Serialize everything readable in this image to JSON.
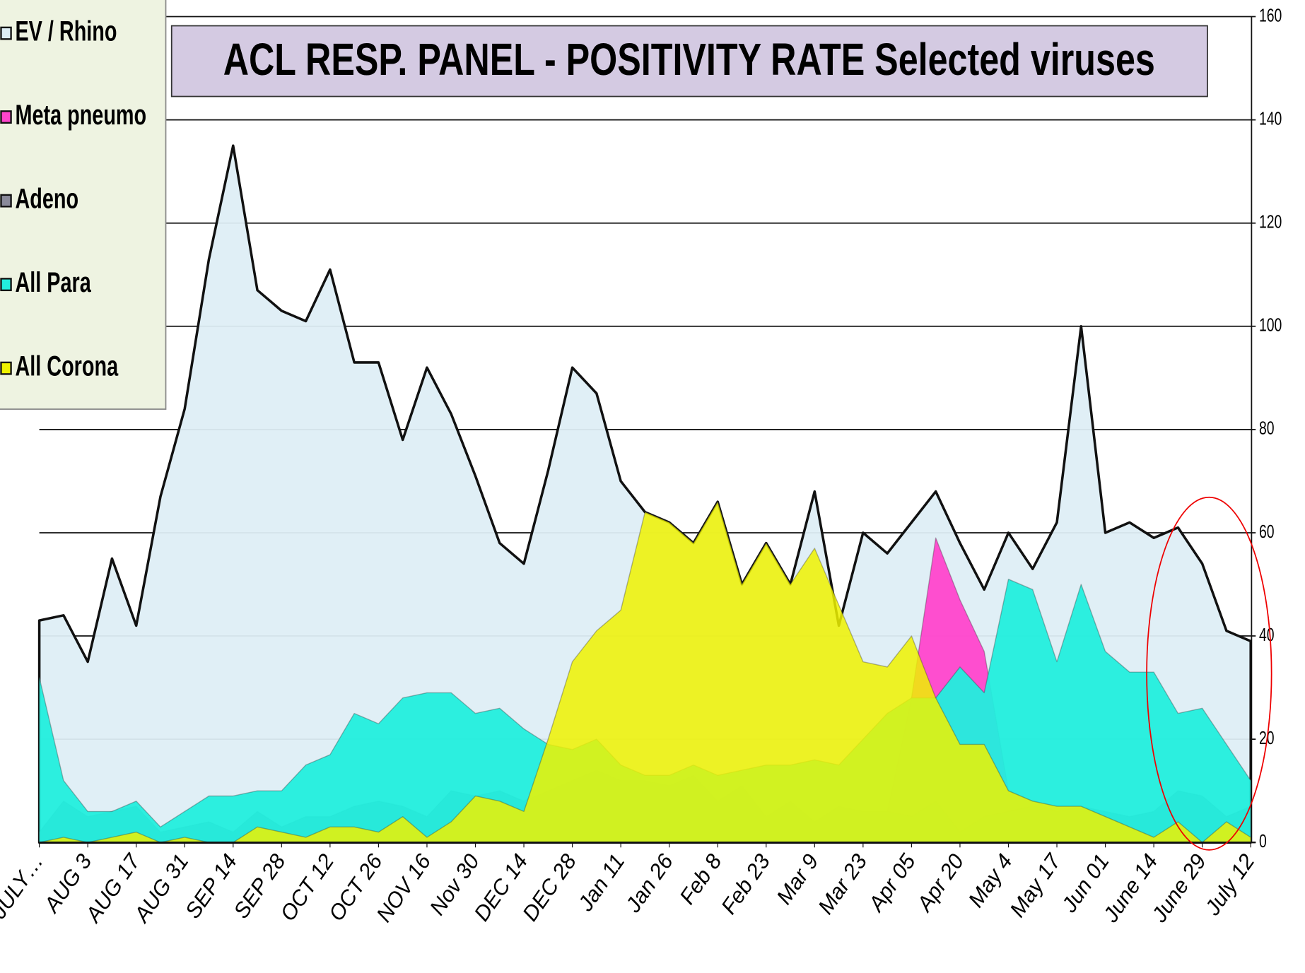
{
  "chart_data": {
    "type": "area",
    "title": "ACL RESP. PANEL -  POSITIVITY RATE Selected viruses",
    "categories": [
      "JULY…",
      null,
      "AUG 3",
      null,
      "AUG 17",
      null,
      "AUG 31",
      null,
      "SEP 14",
      null,
      "SEP 28",
      null,
      "OCT 12",
      null,
      "OCT 26",
      null,
      "NOV 16",
      null,
      "Nov 30",
      null,
      "DEC 14",
      null,
      "DEC 28",
      null,
      "Jan 11",
      null,
      "Jan 26",
      null,
      "Feb 8",
      null,
      "Feb 23",
      null,
      "Mar 9",
      null,
      "Mar 23",
      null,
      "Apr 05",
      null,
      "Apr 20",
      null,
      "May 4",
      null,
      "May 17",
      null,
      "Jun 01",
      null,
      "June 14",
      null,
      "June 29",
      null,
      "July 12"
    ],
    "series": [
      {
        "name": "EV / Rhino",
        "color": "#deeef5",
        "values": [
          43,
          44,
          35,
          55,
          42,
          67,
          84,
          113,
          135,
          107,
          103,
          101,
          111,
          93,
          93,
          78,
          92,
          83,
          71,
          58,
          54,
          72,
          92,
          87,
          70,
          64,
          62,
          58,
          66,
          50,
          58,
          50,
          68,
          42,
          60,
          56,
          62,
          68,
          58,
          49,
          60,
          53,
          62,
          100,
          60,
          62,
          59,
          61,
          54,
          41,
          39
        ]
      },
      {
        "name": "Meta pneumo",
        "color": "#ff44cc",
        "values": [
          2,
          2,
          1,
          2,
          2,
          1,
          2,
          2,
          1,
          2,
          2,
          2,
          3,
          3,
          3,
          3,
          3,
          3,
          3,
          3,
          3,
          3,
          4,
          4,
          4,
          4,
          4,
          4,
          4,
          4,
          4,
          4,
          4,
          4,
          5,
          6,
          28,
          59,
          47,
          37,
          10,
          8,
          6,
          5,
          4,
          3,
          3,
          3,
          2,
          2,
          2
        ]
      },
      {
        "name": "Adeno",
        "color": "#8a8a9a",
        "values": [
          2,
          8,
          5,
          6,
          7,
          2,
          3,
          4,
          2,
          6,
          3,
          5,
          5,
          7,
          8,
          7,
          5,
          10,
          9,
          10,
          8,
          10,
          12,
          14,
          12,
          12,
          11,
          13,
          8,
          11,
          5,
          8,
          4,
          7,
          6,
          6,
          5,
          8,
          2,
          5,
          6,
          7,
          6,
          7,
          6,
          5,
          6,
          10,
          9,
          5,
          7
        ]
      },
      {
        "name": "All Para",
        "color": "#22eedd",
        "values": [
          32,
          12,
          6,
          6,
          8,
          3,
          6,
          9,
          9,
          10,
          10,
          15,
          17,
          25,
          23,
          28,
          29,
          29,
          25,
          26,
          22,
          19,
          18,
          20,
          15,
          13,
          13,
          15,
          13,
          14,
          15,
          15,
          16,
          15,
          20,
          25,
          28,
          28,
          34,
          29,
          51,
          49,
          35,
          50,
          37,
          33,
          33,
          25,
          26,
          19,
          12
        ]
      },
      {
        "name": "All Corona",
        "color": "#eef200",
        "values": [
          0,
          1,
          0,
          1,
          2,
          0,
          1,
          0,
          0,
          3,
          2,
          1,
          3,
          3,
          2,
          5,
          1,
          4,
          9,
          8,
          6,
          20,
          35,
          41,
          45,
          64,
          62,
          58,
          66,
          50,
          58,
          50,
          57,
          46,
          35,
          34,
          40,
          28,
          19,
          19,
          10,
          8,
          7,
          7,
          5,
          3,
          1,
          4,
          0,
          4,
          1
        ]
      }
    ],
    "ylim": [
      0,
      160
    ],
    "yticks": [
      0,
      20,
      40,
      60,
      80,
      100,
      120,
      140,
      160
    ],
    "grid": true,
    "y_axis_side": "right",
    "legend": "upper left"
  }
}
